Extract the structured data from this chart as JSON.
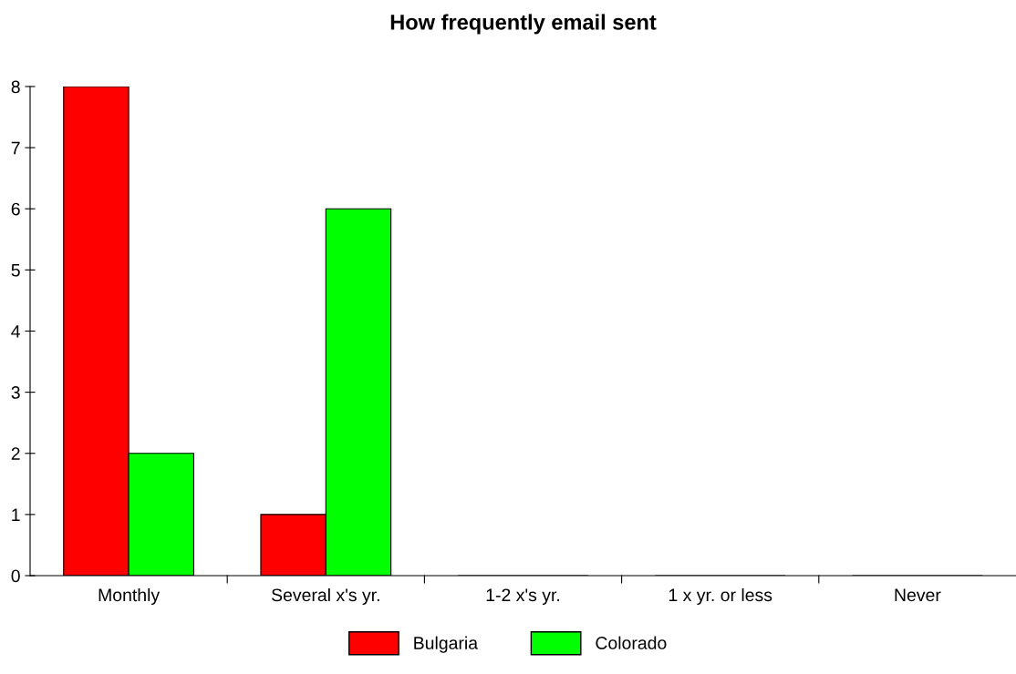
{
  "chart_data": {
    "type": "bar",
    "title": "How frequently email sent",
    "categories": [
      "Monthly",
      "Several x's yr.",
      "1-2 x's yr.",
      "1 x yr. or less",
      "Never"
    ],
    "series": [
      {
        "name": "Bulgaria",
        "color": "#ff0000",
        "values": [
          8,
          1,
          0,
          0,
          0
        ]
      },
      {
        "name": "Colorado",
        "color": "#00ff00",
        "values": [
          2,
          6,
          0,
          0,
          0
        ]
      }
    ],
    "ylim": [
      0,
      8
    ],
    "yticks": [
      0,
      1,
      2,
      3,
      4,
      5,
      6,
      7,
      8
    ],
    "grid": false,
    "legend": "bottom"
  }
}
